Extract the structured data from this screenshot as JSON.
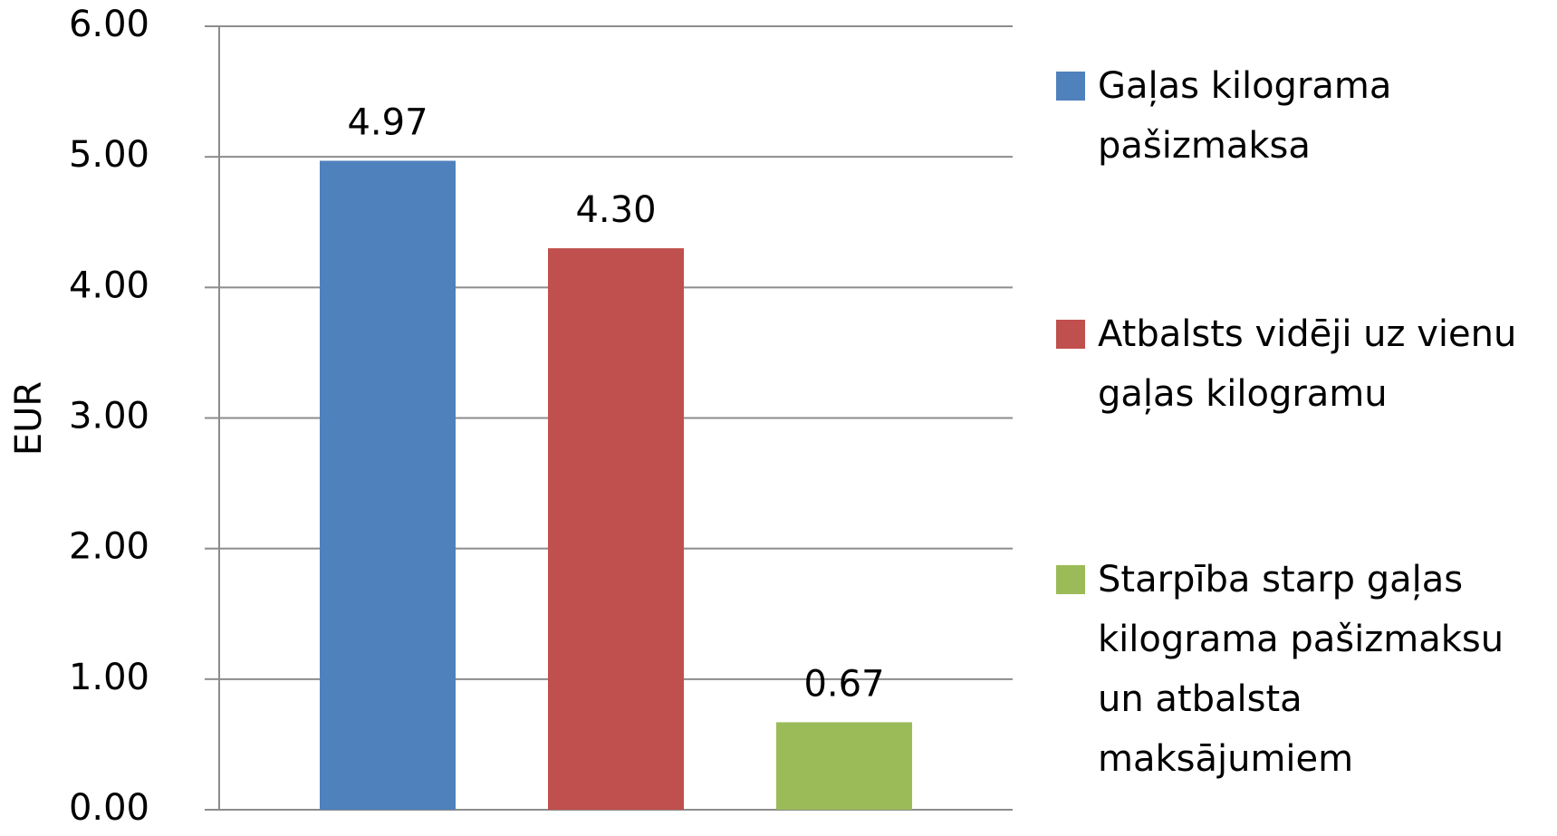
{
  "chart_data": {
    "type": "bar",
    "ylabel": "EUR",
    "series": [
      {
        "name": "Gaļas kilograma pašizmaksa",
        "color": "#4f81bd",
        "values": [
          4.97
        ],
        "value_labels": [
          "4.97"
        ]
      },
      {
        "name": "Atbalsts vidēji uz vienu gaļas kilogramu",
        "color": "#c0504d",
        "values": [
          4.3
        ],
        "value_labels": [
          "4.30"
        ]
      },
      {
        "name": "Starpība starp gaļas kilograma pašizmaksu un atbalsta maksājumiem",
        "color": "#9bbb59",
        "values": [
          0.67
        ],
        "value_labels": [
          "0.67"
        ]
      }
    ],
    "ylim": [
      0,
      6
    ],
    "yticks": [
      {
        "value": 0,
        "label": "0.00"
      },
      {
        "value": 1,
        "label": "1.00"
      },
      {
        "value": 2,
        "label": "2.00"
      },
      {
        "value": 3,
        "label": "3.00"
      },
      {
        "value": 4,
        "label": "4.00"
      },
      {
        "value": 5,
        "label": "5.00"
      },
      {
        "value": 6,
        "label": "6.00"
      }
    ],
    "grid": true,
    "legend": "right"
  }
}
